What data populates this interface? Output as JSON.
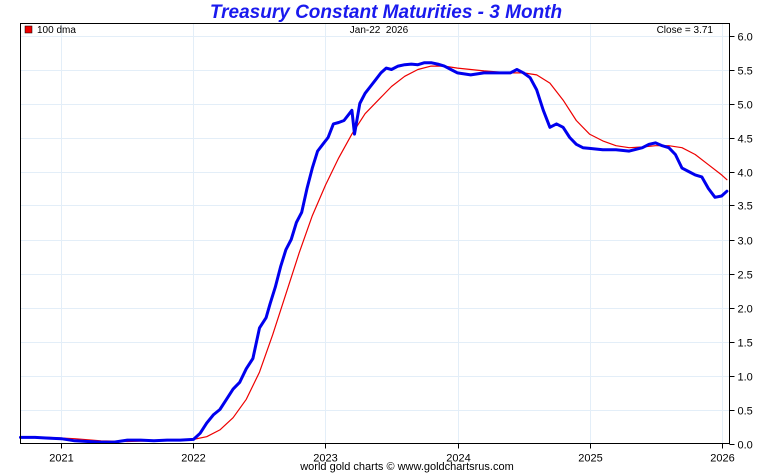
{
  "chart_data": {
    "type": "line",
    "title": "Treasury Constant Maturities - 3 Month",
    "date_label": "Jan-22  2026",
    "close_label": "Close = 3.71",
    "legend": [
      {
        "label": "100 dma",
        "color": "#ee0000"
      }
    ],
    "footer": "world gold charts © www.goldchartsrus.com",
    "xlabel": "",
    "ylabel": "",
    "xlim": [
      2020.69,
      2026.06
    ],
    "ylim": [
      0.0,
      6.0
    ],
    "x_ticks": [
      2021,
      2022,
      2023,
      2024,
      2025,
      2026
    ],
    "x_tick_labels": [
      "2021",
      "2022",
      "2023",
      "2024",
      "2025",
      "2026"
    ],
    "y_ticks": [
      0.0,
      0.5,
      1.0,
      1.5,
      2.0,
      2.5,
      3.0,
      3.5,
      4.0,
      4.5,
      5.0,
      5.5,
      6.0
    ],
    "y_tick_labels": [
      "0.0",
      "0.5",
      "1.0",
      "1.5",
      "2.0",
      "2.5",
      "3.0",
      "3.5",
      "4.0",
      "4.5",
      "5.0",
      "5.5",
      "6.0"
    ],
    "grid": true,
    "legend_position": "top-left",
    "series": [
      {
        "name": "3 Month",
        "color": "#0000ee",
        "x": [
          2020.69,
          2020.8,
          2020.9,
          2021.0,
          2021.1,
          2021.2,
          2021.3,
          2021.4,
          2021.5,
          2021.6,
          2021.7,
          2021.8,
          2021.9,
          2022.0,
          2022.05,
          2022.1,
          2022.15,
          2022.2,
          2022.25,
          2022.3,
          2022.35,
          2022.4,
          2022.45,
          2022.5,
          2022.55,
          2022.58,
          2022.62,
          2022.66,
          2022.7,
          2022.74,
          2022.78,
          2022.82,
          2022.86,
          2022.9,
          2022.94,
          2022.98,
          2023.02,
          2023.06,
          2023.1,
          2023.14,
          2023.18,
          2023.2,
          2023.22,
          2023.26,
          2023.3,
          2023.34,
          2023.38,
          2023.42,
          2023.46,
          2023.5,
          2023.55,
          2023.6,
          2023.65,
          2023.7,
          2023.75,
          2023.8,
          2023.85,
          2023.9,
          2023.95,
          2024.0,
          2024.1,
          2024.2,
          2024.3,
          2024.4,
          2024.45,
          2024.5,
          2024.55,
          2024.6,
          2024.65,
          2024.7,
          2024.75,
          2024.8,
          2024.85,
          2024.9,
          2024.95,
          2025.0,
          2025.1,
          2025.2,
          2025.3,
          2025.4,
          2025.45,
          2025.5,
          2025.55,
          2025.6,
          2025.65,
          2025.7,
          2025.75,
          2025.8,
          2025.85,
          2025.9,
          2025.95,
          2026.0,
          2026.04
        ],
        "y": [
          0.09,
          0.09,
          0.08,
          0.07,
          0.04,
          0.03,
          0.02,
          0.02,
          0.05,
          0.05,
          0.04,
          0.05,
          0.05,
          0.06,
          0.15,
          0.3,
          0.42,
          0.5,
          0.65,
          0.8,
          0.9,
          1.1,
          1.25,
          1.7,
          1.85,
          2.05,
          2.3,
          2.6,
          2.85,
          3.0,
          3.25,
          3.4,
          3.75,
          4.05,
          4.3,
          4.4,
          4.5,
          4.7,
          4.72,
          4.75,
          4.85,
          4.9,
          4.55,
          5.0,
          5.15,
          5.25,
          5.35,
          5.45,
          5.52,
          5.5,
          5.55,
          5.57,
          5.58,
          5.57,
          5.6,
          5.6,
          5.58,
          5.55,
          5.5,
          5.45,
          5.42,
          5.45,
          5.45,
          5.45,
          5.5,
          5.45,
          5.38,
          5.2,
          4.9,
          4.65,
          4.7,
          4.65,
          4.5,
          4.4,
          4.35,
          4.34,
          4.32,
          4.32,
          4.3,
          4.35,
          4.4,
          4.42,
          4.38,
          4.35,
          4.25,
          4.05,
          4.0,
          3.95,
          3.92,
          3.75,
          3.62,
          3.64,
          3.71
        ]
      },
      {
        "name": "100 dma",
        "color": "#ee0000",
        "x": [
          2020.69,
          2020.9,
          2021.1,
          2021.3,
          2021.5,
          2021.7,
          2021.9,
          2022.0,
          2022.1,
          2022.2,
          2022.3,
          2022.4,
          2022.5,
          2022.6,
          2022.7,
          2022.8,
          2022.9,
          2023.0,
          2023.1,
          2023.2,
          2023.3,
          2023.4,
          2023.5,
          2023.6,
          2023.7,
          2023.8,
          2023.9,
          2024.0,
          2024.2,
          2024.4,
          2024.5,
          2024.6,
          2024.7,
          2024.8,
          2024.9,
          2025.0,
          2025.1,
          2025.2,
          2025.3,
          2025.4,
          2025.5,
          2025.6,
          2025.7,
          2025.8,
          2025.9,
          2026.0,
          2026.04
        ],
        "y": [
          0.1,
          0.09,
          0.07,
          0.04,
          0.03,
          0.04,
          0.05,
          0.06,
          0.1,
          0.2,
          0.38,
          0.65,
          1.05,
          1.6,
          2.2,
          2.8,
          3.35,
          3.8,
          4.2,
          4.55,
          4.85,
          5.05,
          5.25,
          5.4,
          5.5,
          5.55,
          5.55,
          5.52,
          5.48,
          5.45,
          5.45,
          5.42,
          5.3,
          5.05,
          4.75,
          4.55,
          4.45,
          4.38,
          4.35,
          4.36,
          4.38,
          4.38,
          4.35,
          4.25,
          4.1,
          3.95,
          3.88
        ]
      }
    ]
  }
}
